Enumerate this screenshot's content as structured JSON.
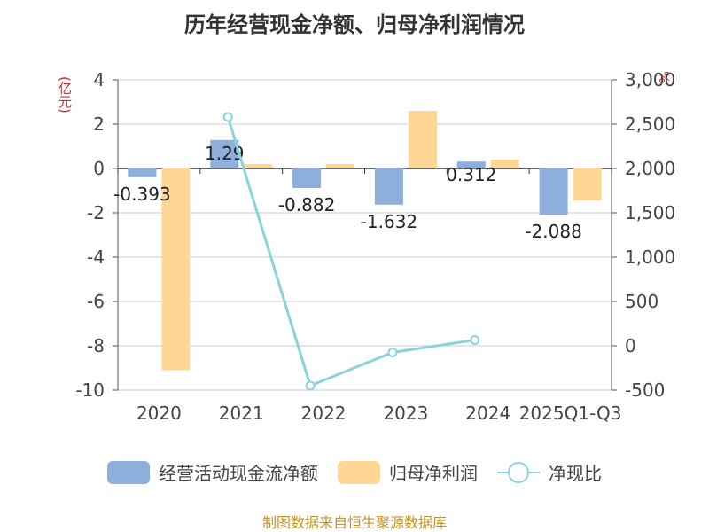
{
  "title": "历年经营现金净额、归母净利润情况",
  "left_unit": "(亿元)",
  "right_unit": "%",
  "source": "制图数据来自恒生聚源数据库",
  "legend": {
    "s1": "经营活动现金流净额",
    "s2": "归母净利润",
    "s3": "净现比"
  },
  "colors": {
    "cash": "#8eaedb",
    "profit": "#ffd794",
    "ratio": "#8ad3d8",
    "axis": "#555555",
    "grid": "#cccccc"
  },
  "chart_data": {
    "type": "bar",
    "categories": [
      "2020",
      "2021",
      "2022",
      "2023",
      "2024",
      "2025Q1-Q3"
    ],
    "series": [
      {
        "name": "经营活动现金流净额",
        "values": [
          -0.393,
          1.29,
          -0.882,
          -1.632,
          0.312,
          -2.088
        ],
        "labels": [
          "-0.393",
          "1.29",
          "-0.882",
          "-1.632",
          "0.312",
          "-2.088"
        ]
      },
      {
        "name": "归母净利润",
        "values": [
          -9.1,
          0.2,
          0.2,
          2.6,
          0.4,
          -1.45
        ]
      },
      {
        "name": "净现比",
        "type": "line",
        "axis": "right",
        "values": [
          null,
          2580,
          -450,
          -75,
          65,
          null
        ]
      }
    ],
    "y_left": {
      "min": -10,
      "max": 4,
      "ticks": [
        "4",
        "2",
        "0",
        "-2",
        "-4",
        "-6",
        "-8",
        "-10"
      ]
    },
    "y_right": {
      "min": -500,
      "max": 3000,
      "ticks": [
        "3,000",
        "2,500",
        "2,000",
        "1,500",
        "1,000",
        "500",
        "0",
        "-500"
      ]
    },
    "grid": true,
    "legend_position": "bottom"
  }
}
